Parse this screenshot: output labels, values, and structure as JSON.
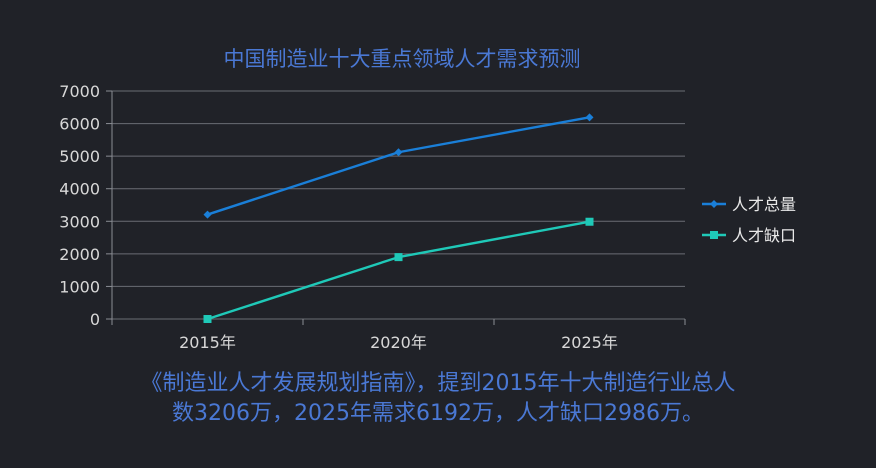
{
  "chart_data": {
    "type": "line",
    "title": "中国制造业十大重点领域人才需求预测",
    "categories": [
      "2015年",
      "2020年",
      "2025年"
    ],
    "series": [
      {
        "name": "人才总量",
        "values": [
          3206,
          5120,
          6192
        ],
        "color": "#1a7fd8",
        "marker": "diamond"
      },
      {
        "name": "人才缺口",
        "values": [
          0,
          1900,
          2986
        ],
        "color": "#1fc9b8",
        "marker": "square"
      }
    ],
    "y_ticks": [
      "7000",
      "6000",
      "5000",
      "4000",
      "3000",
      "2000",
      "1000",
      "0"
    ],
    "ylim": [
      0,
      7000
    ],
    "grid": true,
    "legend": "right"
  },
  "caption": {
    "line1": "《制造业人才发展规划指南》，提到2015年十大制造行业总人",
    "line2": "数3206万，2025年需求6192万，人才缺口2986万。"
  }
}
